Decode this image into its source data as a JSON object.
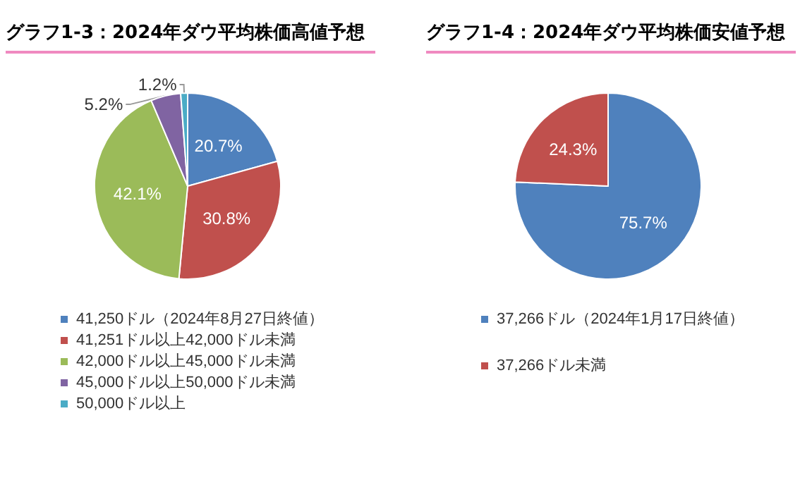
{
  "chart_data": [
    {
      "type": "pie",
      "title": "グラフ1-3：2024年ダウ平均株価高値予想",
      "categories": [
        "41,250ドル（2024年8月27日終値）",
        "41,251ドル以上42,000ドル未満",
        "42,000ドル以上45,000ドル未満",
        "45,000ドル以上50,000ドル未満",
        "50,000ドル以上"
      ],
      "values": [
        20.7,
        30.8,
        42.1,
        5.2,
        1.2
      ],
      "value_labels": [
        "20.7%",
        "30.8%",
        "42.1%",
        "5.2%",
        "1.2%"
      ],
      "colors": [
        "#4f81bd",
        "#c0504d",
        "#9bbb59",
        "#8064a2",
        "#4bacc6"
      ],
      "legend": "bottom"
    },
    {
      "type": "pie",
      "title": "グラフ1-4：2024年ダウ平均株価安値予想",
      "categories": [
        "37,266ドル（2024年1月17日終値）",
        "37,266ドル未満"
      ],
      "values": [
        75.7,
        24.3
      ],
      "value_labels": [
        "75.7%",
        "24.3%"
      ],
      "colors": [
        "#4f81bd",
        "#c0504d"
      ],
      "legend": "bottom"
    }
  ]
}
